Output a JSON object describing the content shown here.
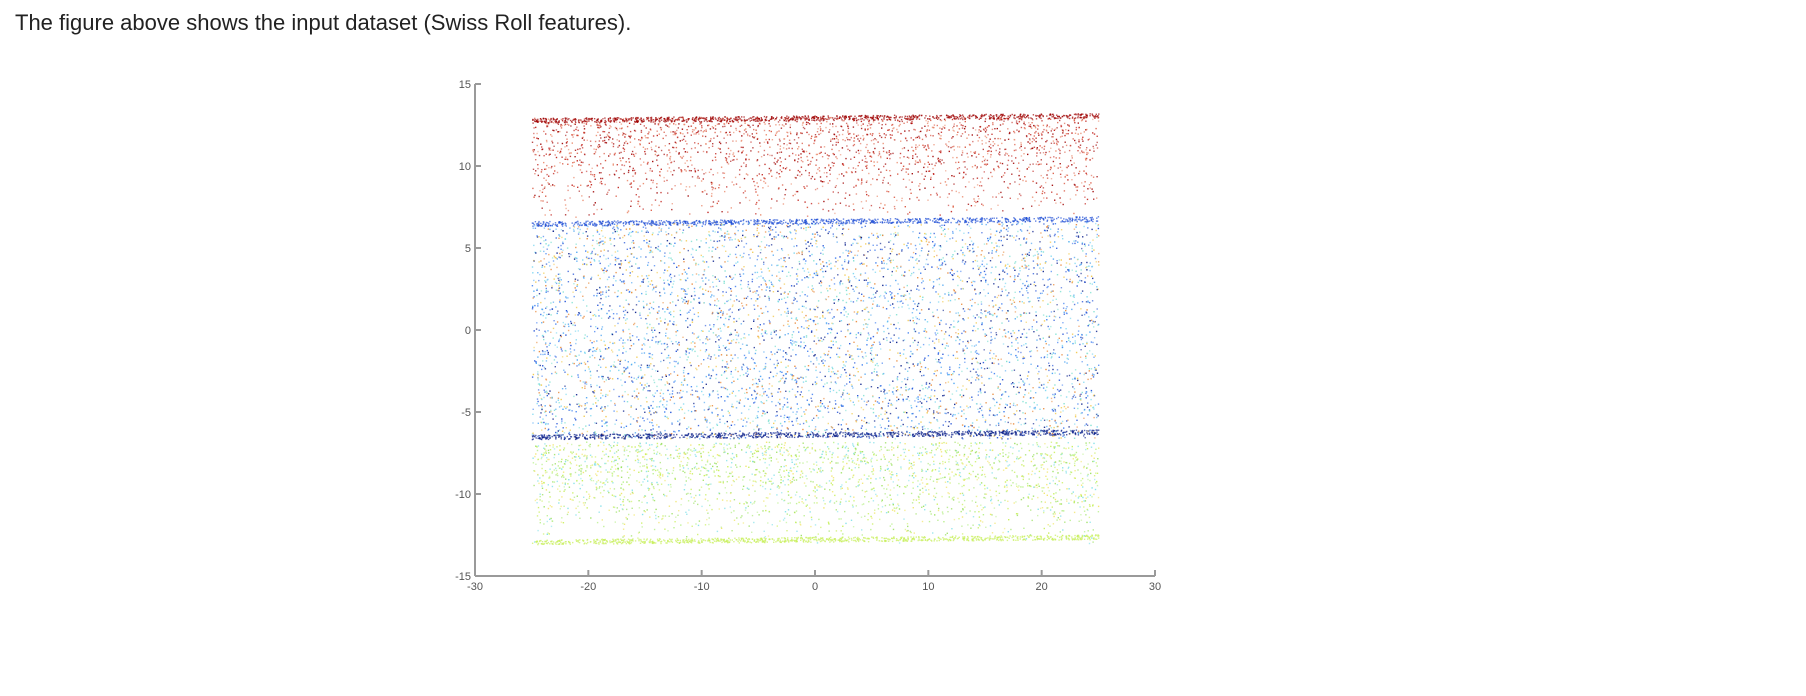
{
  "caption": "The figure above shows the input dataset (Swiss Roll features).",
  "chart_data": {
    "type": "scatter",
    "title": "",
    "xlabel": "",
    "ylabel": "",
    "xlim": [
      -30,
      30
    ],
    "ylim": [
      -15,
      15
    ],
    "xticks": [
      -30,
      -20,
      -10,
      0,
      10,
      20,
      30
    ],
    "yticks": [
      -15,
      -10,
      -5,
      0,
      5,
      10,
      15
    ],
    "grid": false,
    "points_x_range": [
      -25,
      25
    ],
    "bands": [
      {
        "name": "top",
        "y_range": [
          6.8,
          13.0
        ],
        "colors": [
          "#9e0000",
          "#c0201a",
          "#d9553f",
          "#ea8a6c"
        ],
        "dense_edge_y": 12.8
      },
      {
        "name": "middle",
        "y_range": [
          -6.6,
          6.6
        ],
        "colors": [
          "#1f4fd6",
          "#3a7bf0",
          "#0a1f8a",
          "#4aa3f2",
          "#79d6f0",
          "#f1c84a",
          "#e88a3c",
          "#7de0d0"
        ],
        "dense_edge_top_y": 6.5,
        "dense_edge_bottom_y": -6.5
      },
      {
        "name": "bottom",
        "y_range": [
          -13.0,
          -6.8
        ],
        "colors": [
          "#c8ef5a",
          "#9be060",
          "#f1e56a",
          "#7fe0e8",
          "#b8f08a"
        ],
        "dense_edge_y": -12.9
      }
    ]
  }
}
